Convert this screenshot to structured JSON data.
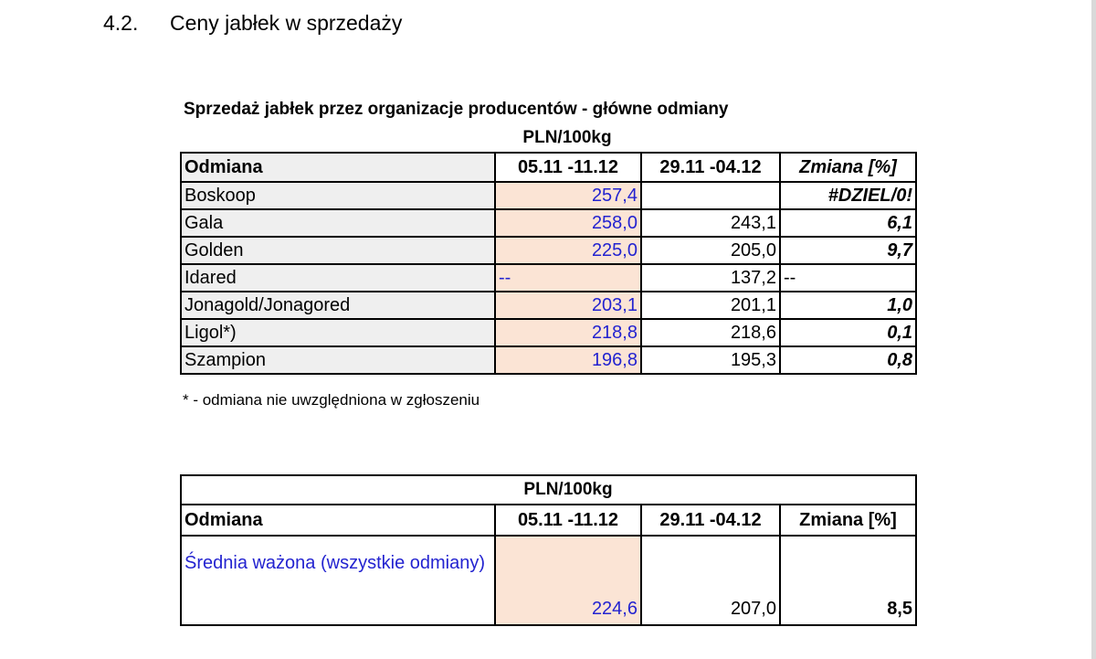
{
  "heading": {
    "number": "4.2.",
    "text": "Ceny jabłek w sprzedaży"
  },
  "table1": {
    "title": "Sprzedaż jabłek przez organizacje producentów  - główne odmiany",
    "unit": "PLN/100kg",
    "columns": [
      "Odmiana",
      "05.11 -11.12",
      "29.11 -04.12",
      "Zmiana  [%]"
    ],
    "rows": [
      {
        "name": "Boskoop",
        "v1": "257,4",
        "v2": "",
        "change": "#DZIEL/0!"
      },
      {
        "name": "Gala",
        "v1": "258,0",
        "v2": "243,1",
        "change": "6,1"
      },
      {
        "name": "Golden",
        "v1": "225,0",
        "v2": "205,0",
        "change": "9,7"
      },
      {
        "name": "Idared",
        "v1": "--",
        "v2": "137,2",
        "change": "--"
      },
      {
        "name": "Jonagold/Jonagored",
        "v1": "203,1",
        "v2": "201,1",
        "change": "1,0"
      },
      {
        "name": "Ligol*)",
        "v1": "218,8",
        "v2": "218,6",
        "change": "0,1"
      },
      {
        "name": "Szampion",
        "v1": "196,8",
        "v2": "195,3",
        "change": "0,8"
      }
    ],
    "footnote": "* - odmiana nie uwzględniona w zgłoszeniu"
  },
  "table2": {
    "unit": "PLN/100kg",
    "columns": [
      "Odmiana",
      "05.11 -11.12",
      "29.11 -04.12",
      "Zmiana  [%]"
    ],
    "row": {
      "name": "Średnia ważona (wszystkie odmiany)",
      "v1": "224,6",
      "v2": "207,0",
      "change": "8,5"
    }
  }
}
